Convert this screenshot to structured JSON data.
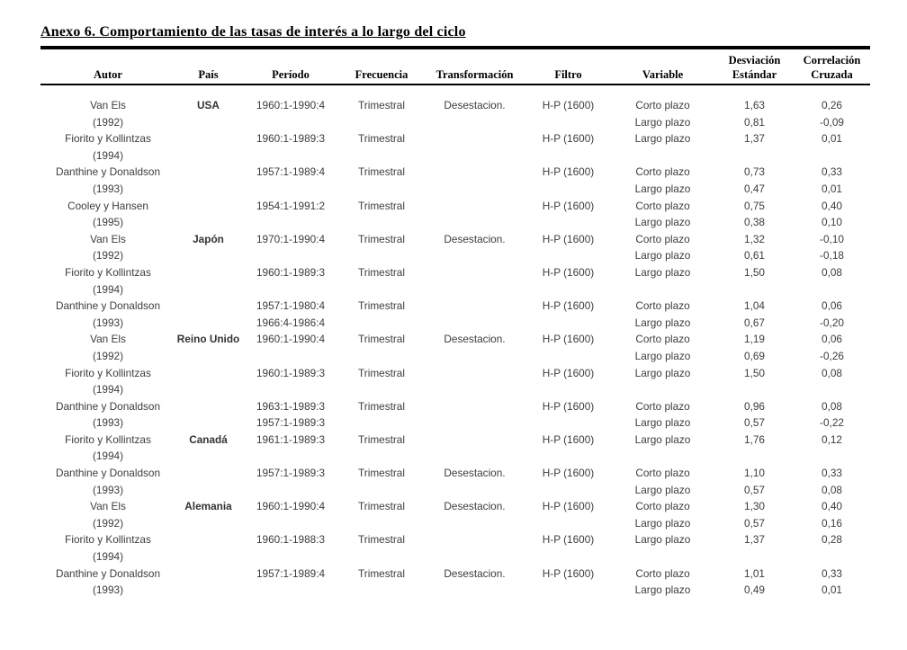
{
  "title": "Anexo 6. Comportamiento de las tasas de interés a lo largo del ciclo",
  "table": {
    "headers": [
      {
        "line1": "",
        "line2": "Autor"
      },
      {
        "line1": "",
        "line2": "País"
      },
      {
        "line1": "",
        "line2": "Período"
      },
      {
        "line1": "",
        "line2": "Frecuencia"
      },
      {
        "line1": "",
        "line2": "Transformación"
      },
      {
        "line1": "",
        "line2": "Filtro"
      },
      {
        "line1": "",
        "line2": "Variable"
      },
      {
        "line1": "Desviación",
        "line2": "Estándar"
      },
      {
        "line1": "Correlación",
        "line2": "Cruzada"
      }
    ],
    "rows": [
      {
        "autor": [
          "Van Els",
          "(1992)"
        ],
        "pais": [
          "USA",
          ""
        ],
        "periodo": [
          "1960:1-1990:4",
          ""
        ],
        "frecuencia": [
          "Trimestral",
          ""
        ],
        "transformacion": [
          "Desestacion.",
          ""
        ],
        "filtro": [
          "H-P (1600)",
          ""
        ],
        "variable": [
          "Corto plazo",
          "Largo plazo"
        ],
        "desviacion": [
          "1,63",
          "0,81"
        ],
        "correlacion": [
          "0,26",
          "-0,09"
        ]
      },
      {
        "autor": [
          "Fiorito y Kollintzas",
          "(1994)"
        ],
        "pais": [
          "",
          ""
        ],
        "periodo": [
          "1960:1-1989:3",
          ""
        ],
        "frecuencia": [
          "Trimestral",
          ""
        ],
        "transformacion": [
          "",
          ""
        ],
        "filtro": [
          "H-P (1600)",
          ""
        ],
        "variable": [
          "Largo plazo",
          ""
        ],
        "desviacion": [
          "1,37",
          ""
        ],
        "correlacion": [
          "0,01",
          ""
        ]
      },
      {
        "autor": [
          "Danthine y Donaldson",
          "(1993)"
        ],
        "pais": [
          "",
          ""
        ],
        "periodo": [
          "1957:1-1989:4",
          ""
        ],
        "frecuencia": [
          "Trimestral",
          ""
        ],
        "transformacion": [
          "",
          ""
        ],
        "filtro": [
          "H-P (1600)",
          ""
        ],
        "variable": [
          "Corto plazo",
          "Largo plazo"
        ],
        "desviacion": [
          "0,73",
          "0,47"
        ],
        "correlacion": [
          "0,33",
          "0,01"
        ]
      },
      {
        "autor": [
          "Cooley y Hansen",
          "(1995)"
        ],
        "pais": [
          "",
          ""
        ],
        "periodo": [
          "1954:1-1991:2",
          ""
        ],
        "frecuencia": [
          "Trimestral",
          ""
        ],
        "transformacion": [
          "",
          ""
        ],
        "filtro": [
          "H-P (1600)",
          ""
        ],
        "variable": [
          "Corto plazo",
          "Largo plazo"
        ],
        "desviacion": [
          "0,75",
          "0,38"
        ],
        "correlacion": [
          "0,40",
          "0,10"
        ]
      },
      {
        "autor": [
          "Van Els",
          "(1992)"
        ],
        "pais": [
          "Japón",
          ""
        ],
        "periodo": [
          "1970:1-1990:4",
          ""
        ],
        "frecuencia": [
          "Trimestral",
          ""
        ],
        "transformacion": [
          "Desestacion.",
          ""
        ],
        "filtro": [
          "H-P (1600)",
          ""
        ],
        "variable": [
          "Corto plazo",
          "Largo plazo"
        ],
        "desviacion": [
          "1,32",
          "0,61"
        ],
        "correlacion": [
          "-0,10",
          "-0,18"
        ]
      },
      {
        "autor": [
          "Fiorito y Kollintzas",
          "(1994)"
        ],
        "pais": [
          "",
          ""
        ],
        "periodo": [
          "1960:1-1989:3",
          ""
        ],
        "frecuencia": [
          "Trimestral",
          ""
        ],
        "transformacion": [
          "",
          ""
        ],
        "filtro": [
          "H-P (1600)",
          ""
        ],
        "variable": [
          "Largo plazo",
          ""
        ],
        "desviacion": [
          "1,50",
          ""
        ],
        "correlacion": [
          "0,08",
          ""
        ]
      },
      {
        "autor": [
          "Danthine y Donaldson",
          "(1993)"
        ],
        "pais": [
          "",
          ""
        ],
        "periodo": [
          "1957:1-1980:4",
          "1966:4-1986:4"
        ],
        "frecuencia": [
          "Trimestral",
          ""
        ],
        "transformacion": [
          "",
          ""
        ],
        "filtro": [
          "H-P (1600)",
          ""
        ],
        "variable": [
          "Corto plazo",
          "Largo plazo"
        ],
        "desviacion": [
          "1,04",
          "0,67"
        ],
        "correlacion": [
          "0,06",
          "-0,20"
        ]
      },
      {
        "autor": [
          "Van Els",
          "(1992)"
        ],
        "pais": [
          "Reino Unido",
          ""
        ],
        "periodo": [
          "1960:1-1990:4",
          ""
        ],
        "frecuencia": [
          "Trimestral",
          ""
        ],
        "transformacion": [
          "Desestacion.",
          ""
        ],
        "filtro": [
          "H-P (1600)",
          ""
        ],
        "variable": [
          "Corto plazo",
          "Largo plazo"
        ],
        "desviacion": [
          "1,19",
          "0,69"
        ],
        "correlacion": [
          "0,06",
          "-0,26"
        ]
      },
      {
        "autor": [
          "Fiorito y Kollintzas",
          "(1994)"
        ],
        "pais": [
          "",
          ""
        ],
        "periodo": [
          "1960:1-1989:3",
          ""
        ],
        "frecuencia": [
          "Trimestral",
          ""
        ],
        "transformacion": [
          "",
          ""
        ],
        "filtro": [
          "H-P (1600)",
          ""
        ],
        "variable": [
          "Largo plazo",
          ""
        ],
        "desviacion": [
          "1,50",
          ""
        ],
        "correlacion": [
          "0,08",
          ""
        ]
      },
      {
        "autor": [
          "Danthine y Donaldson",
          "(1993)"
        ],
        "pais": [
          "",
          ""
        ],
        "periodo": [
          "1963:1-1989:3",
          "1957:1-1989:3"
        ],
        "frecuencia": [
          "Trimestral",
          ""
        ],
        "transformacion": [
          "",
          ""
        ],
        "filtro": [
          "H-P (1600)",
          ""
        ],
        "variable": [
          "Corto plazo",
          "Largo plazo"
        ],
        "desviacion": [
          "0,96",
          "0,57"
        ],
        "correlacion": [
          "0,08",
          "-0,22"
        ]
      },
      {
        "autor": [
          "Fiorito y Kollintzas",
          "(1994)"
        ],
        "pais": [
          "Canadá",
          ""
        ],
        "periodo": [
          "1961:1-1989:3",
          ""
        ],
        "frecuencia": [
          "Trimestral",
          ""
        ],
        "transformacion": [
          "",
          ""
        ],
        "filtro": [
          "H-P (1600)",
          ""
        ],
        "variable": [
          "Largo plazo",
          ""
        ],
        "desviacion": [
          "1,76",
          ""
        ],
        "correlacion": [
          "0,12",
          ""
        ]
      },
      {
        "autor": [
          "Danthine y Donaldson",
          "(1993)"
        ],
        "pais": [
          "",
          ""
        ],
        "periodo": [
          "1957:1-1989:3",
          ""
        ],
        "frecuencia": [
          "Trimestral",
          ""
        ],
        "transformacion": [
          "Desestacion.",
          ""
        ],
        "filtro": [
          "H-P (1600)",
          ""
        ],
        "variable": [
          "Corto plazo",
          "Largo plazo"
        ],
        "desviacion": [
          "1,10",
          "0,57"
        ],
        "correlacion": [
          "0,33",
          "0,08"
        ]
      },
      {
        "autor": [
          "Van Els",
          "(1992)"
        ],
        "pais": [
          "Alemania",
          ""
        ],
        "periodo": [
          "1960:1-1990:4",
          ""
        ],
        "frecuencia": [
          "Trimestral",
          ""
        ],
        "transformacion": [
          "Desestacion.",
          ""
        ],
        "filtro": [
          "H-P (1600)",
          ""
        ],
        "variable": [
          "Corto plazo",
          "Largo plazo"
        ],
        "desviacion": [
          "1,30",
          "0,57"
        ],
        "correlacion": [
          "0,40",
          "0,16"
        ]
      },
      {
        "autor": [
          "Fiorito y Kollintzas",
          "(1994)"
        ],
        "pais": [
          "",
          ""
        ],
        "periodo": [
          "1960:1-1988:3",
          ""
        ],
        "frecuencia": [
          "Trimestral",
          ""
        ],
        "transformacion": [
          "",
          ""
        ],
        "filtro": [
          "H-P (1600)",
          ""
        ],
        "variable": [
          "Largo plazo",
          ""
        ],
        "desviacion": [
          "1,37",
          ""
        ],
        "correlacion": [
          "0,28",
          ""
        ]
      },
      {
        "autor": [
          "Danthine y Donaldson",
          "(1993)"
        ],
        "pais": [
          "",
          ""
        ],
        "periodo": [
          "1957:1-1989:4",
          ""
        ],
        "frecuencia": [
          "Trimestral",
          ""
        ],
        "transformacion": [
          "Desestacion.",
          ""
        ],
        "filtro": [
          "H-P (1600)",
          ""
        ],
        "variable": [
          "Corto plazo",
          "Largo plazo"
        ],
        "desviacion": [
          "1,01",
          "0,49"
        ],
        "correlacion": [
          "0,33",
          "0,01"
        ]
      }
    ]
  }
}
